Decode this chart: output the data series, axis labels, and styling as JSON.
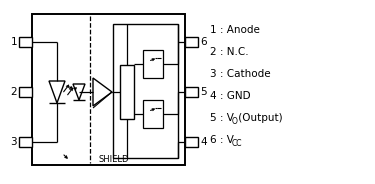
{
  "bg_color": "#ffffff",
  "line_color": "#000000",
  "shield_label": "SHIELD",
  "legend_items": [
    {
      "text": "1 : Anode"
    },
    {
      "text": "2 : N.C."
    },
    {
      "text": "3 : Cathode"
    },
    {
      "text": "4 : GND"
    },
    {
      "text": "5 : V",
      "sub": "O",
      "suffix": " (Output)"
    },
    {
      "text": "6 : V",
      "sub": "CC",
      "suffix": ""
    }
  ],
  "figsize": [
    3.75,
    1.84
  ],
  "dpi": 100
}
